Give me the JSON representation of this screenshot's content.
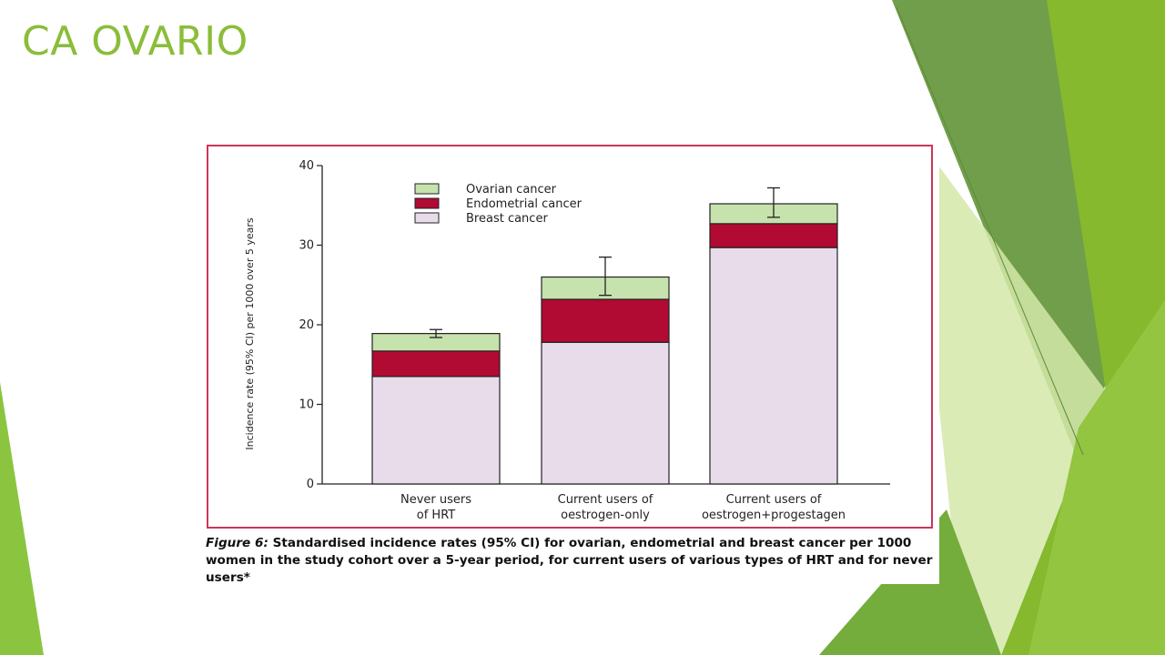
{
  "slide": {
    "title": "CA OVARIO"
  },
  "theme": {
    "accent": "#8bbd3a",
    "frame": "#c9365a"
  },
  "figure": {
    "caption_label": "Figure 6:",
    "caption_text": "Standardised incidence rates (95% CI) for ovarian, endometrial and breast cancer per 1000 women in the study cohort over a 5-year period, for current users of various types of HRT and for never users*"
  },
  "chart_data": {
    "type": "bar",
    "stacked": true,
    "title": "",
    "xlabel": "",
    "ylabel": "Incidence rate (95% CI) per 1000 over 5 years",
    "ylim": [
      0,
      40
    ],
    "yticks": [
      0,
      10,
      20,
      30,
      40
    ],
    "categories": [
      "Never users of HRT",
      "Current users of oestrogen-only",
      "Current users of oestrogen+progestagen"
    ],
    "category_lines": [
      [
        "Never users",
        "of HRT"
      ],
      [
        "Current users of",
        "oestrogen-only"
      ],
      [
        "Current users of",
        "oestrogen+progestagen"
      ]
    ],
    "series": [
      {
        "name": "Breast cancer",
        "values": [
          13.5,
          17.8,
          29.7
        ],
        "color": "#e8dcea"
      },
      {
        "name": "Endometrial cancer",
        "values": [
          3.2,
          5.4,
          3.0
        ],
        "color": "#b10a33"
      },
      {
        "name": "Ovarian cancer",
        "values": [
          2.2,
          2.8,
          2.5
        ],
        "color": "#c6e2ad"
      }
    ],
    "error_bars": [
      [
        18.4,
        19.4
      ],
      [
        23.7,
        28.5
      ],
      [
        33.5,
        37.2
      ]
    ],
    "legend_order": [
      "Ovarian cancer",
      "Endometrial cancer",
      "Breast cancer"
    ],
    "legend_position": "top-left",
    "grid": false
  }
}
